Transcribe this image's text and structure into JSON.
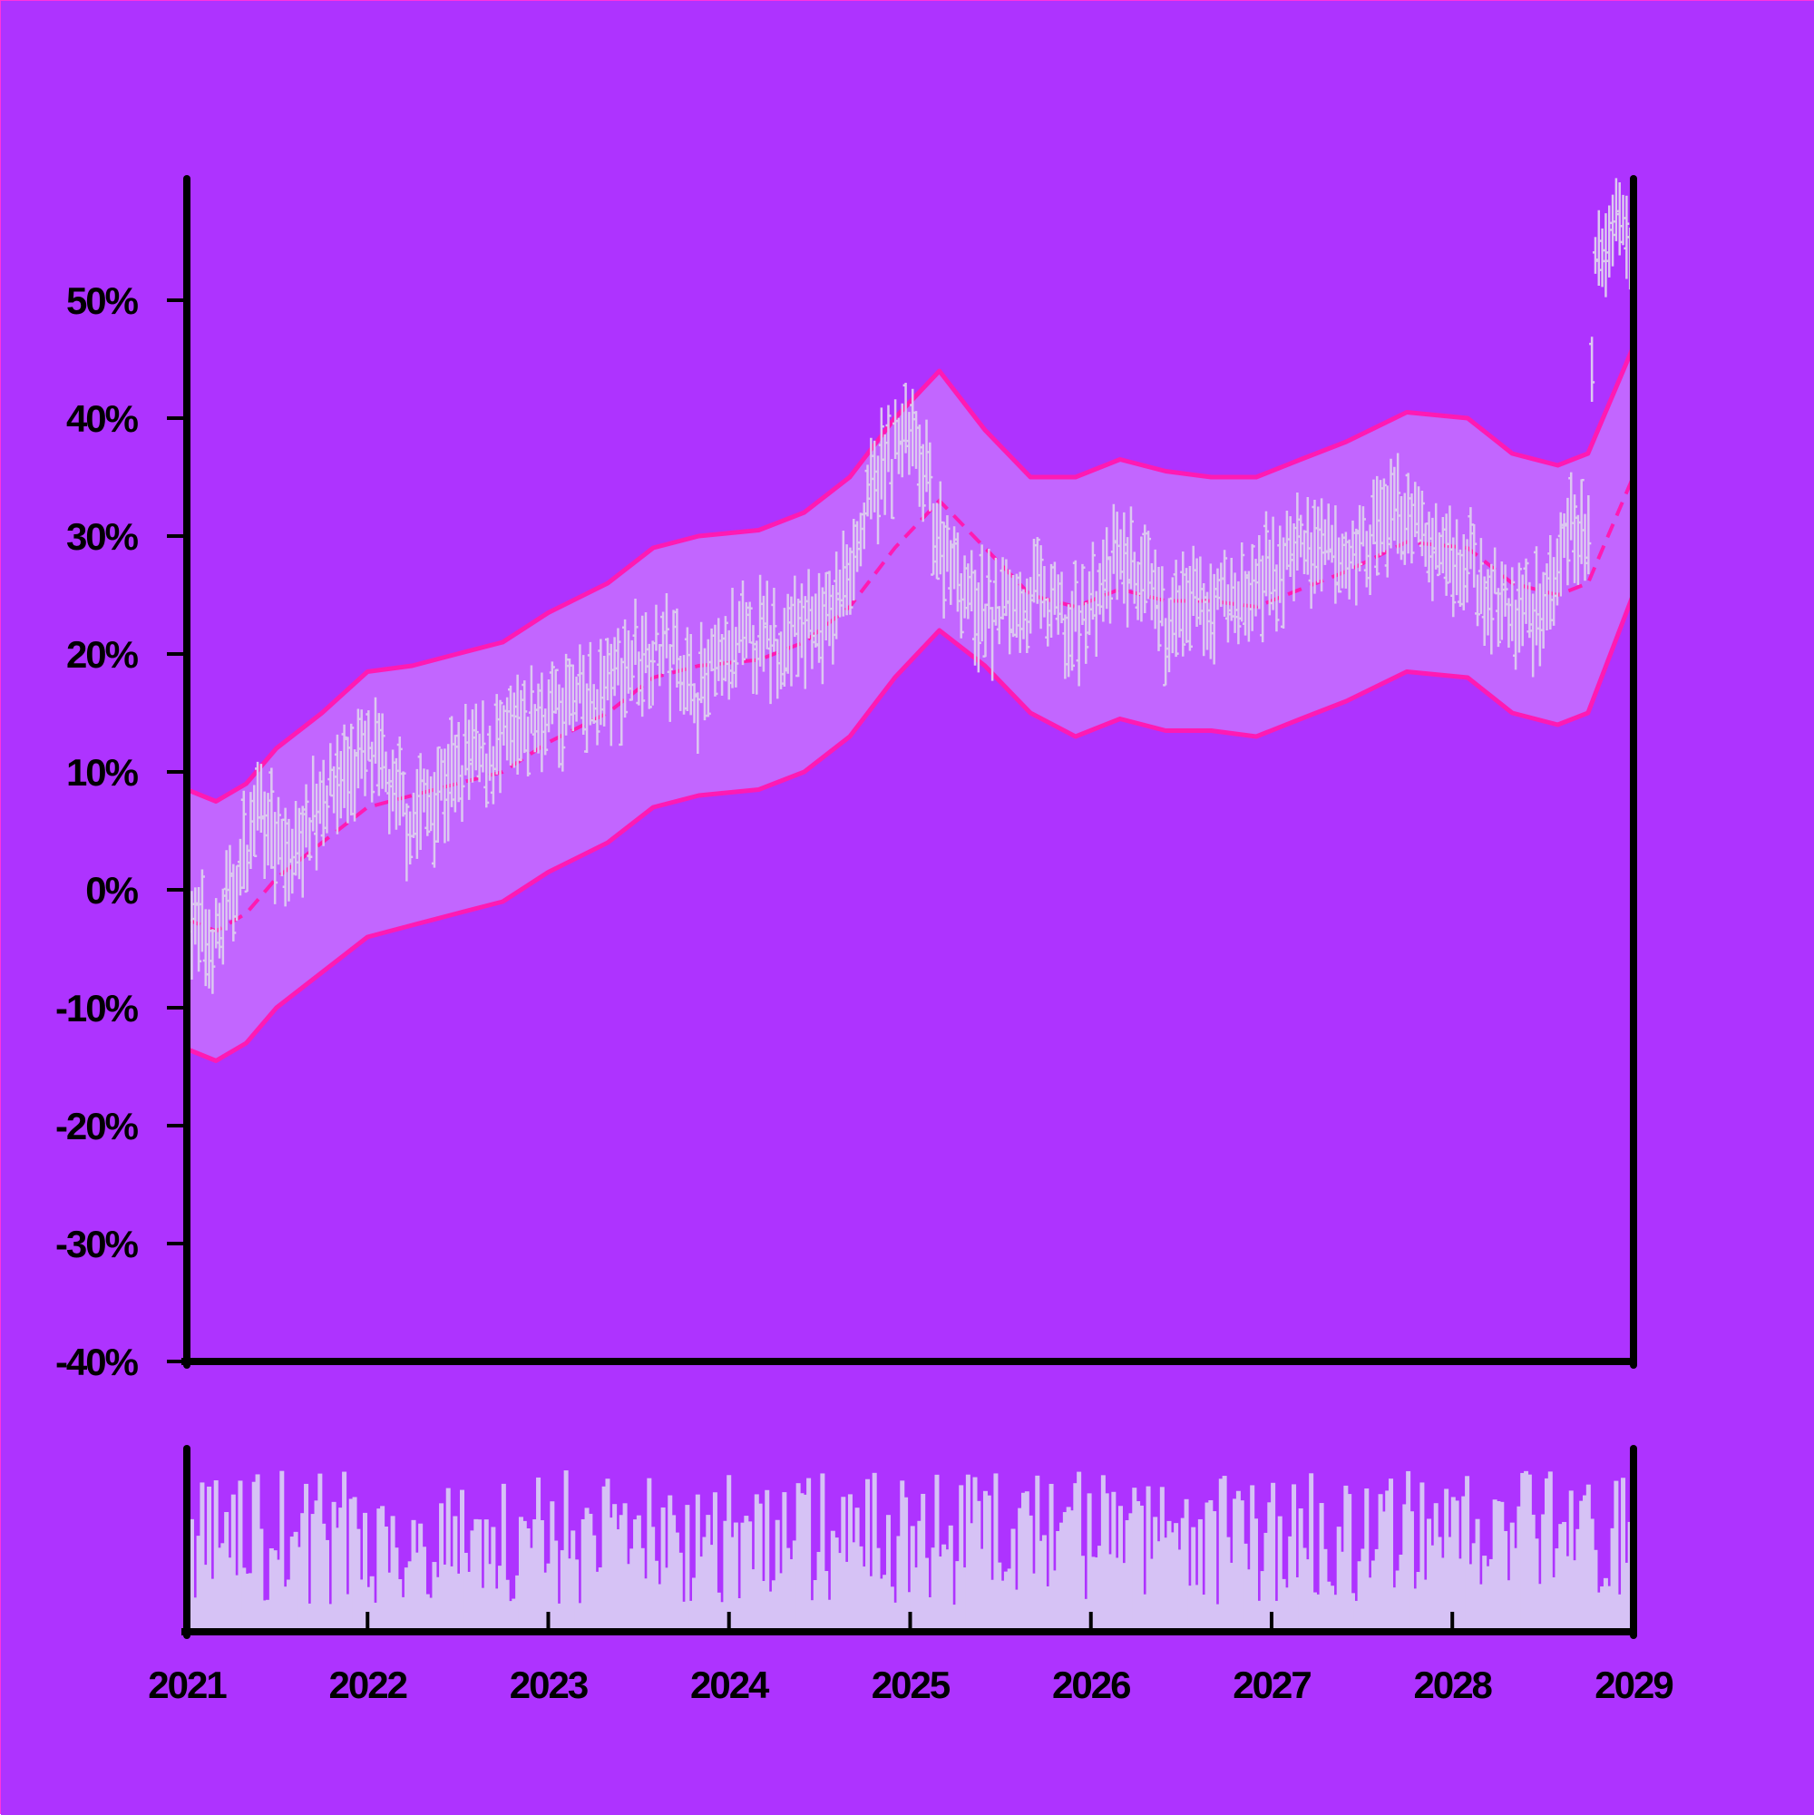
{
  "colors": {
    "background": "#ae33ff",
    "band_fill": "#c266ff",
    "band_line": "#ff1ab3",
    "bar": "#dcc8f0",
    "volume": "#d6c2f5",
    "axis": "#000000"
  },
  "chart_data": {
    "type": "bar",
    "subtype": "ohlc-with-bollinger-bands-and-volume",
    "title": "",
    "xlabel": "",
    "ylabel": "",
    "x_range": [
      "2021-01-01",
      "2029-01-01"
    ],
    "ylim": [
      -40,
      60
    ],
    "y_ticks": [
      -40,
      -30,
      -20,
      -10,
      0,
      10,
      20,
      30,
      40,
      50
    ],
    "y_tick_labels": [
      "-40%",
      "-30%",
      "-20%",
      "-10%",
      "0%",
      "10%",
      "20%",
      "30%",
      "40%",
      "50%"
    ],
    "x_ticks": [
      "2021-01-01",
      "2022-01-01",
      "2023-01-01",
      "2024-01-01",
      "2025-01-01",
      "2026-01-01",
      "2027-01-01",
      "2028-01-01",
      "2029-01-01"
    ],
    "x_tick_labels": [
      "2021",
      "2022",
      "2023",
      "2024",
      "2025",
      "2026",
      "2027",
      "2028",
      "2029"
    ],
    "grid": false,
    "legend": "none",
    "price_keypoints": [
      {
        "t": "2021-01-01",
        "v": -3
      },
      {
        "t": "2021-03-01",
        "v": -4
      },
      {
        "t": "2021-06-01",
        "v": 7
      },
      {
        "t": "2021-07-15",
        "v": 2
      },
      {
        "t": "2021-10-01",
        "v": 8
      },
      {
        "t": "2022-01-01",
        "v": 12
      },
      {
        "t": "2022-04-01",
        "v": 6
      },
      {
        "t": "2022-07-01",
        "v": 10
      },
      {
        "t": "2022-10-01",
        "v": 12
      },
      {
        "t": "2023-01-01",
        "v": 15
      },
      {
        "t": "2023-04-01",
        "v": 16
      },
      {
        "t": "2023-08-01",
        "v": 21
      },
      {
        "t": "2023-11-01",
        "v": 17
      },
      {
        "t": "2024-02-01",
        "v": 21
      },
      {
        "t": "2024-05-01",
        "v": 21
      },
      {
        "t": "2024-08-01",
        "v": 24
      },
      {
        "t": "2024-11-01",
        "v": 35
      },
      {
        "t": "2025-01-01",
        "v": 39
      },
      {
        "t": "2025-03-01",
        "v": 30
      },
      {
        "t": "2025-06-01",
        "v": 23
      },
      {
        "t": "2025-09-01",
        "v": 25
      },
      {
        "t": "2025-12-01",
        "v": 22
      },
      {
        "t": "2026-03-01",
        "v": 28
      },
      {
        "t": "2026-06-01",
        "v": 23
      },
      {
        "t": "2026-09-01",
        "v": 24
      },
      {
        "t": "2026-12-01",
        "v": 25
      },
      {
        "t": "2027-03-01",
        "v": 29
      },
      {
        "t": "2027-06-01",
        "v": 28
      },
      {
        "t": "2027-09-01",
        "v": 32
      },
      {
        "t": "2027-11-01",
        "v": 30
      },
      {
        "t": "2028-02-01",
        "v": 28
      },
      {
        "t": "2028-05-01",
        "v": 23
      },
      {
        "t": "2028-07-15",
        "v": 25
      },
      {
        "t": "2028-09-01",
        "v": 30
      },
      {
        "t": "2028-10-01",
        "v": 30
      },
      {
        "t": "2028-10-15",
        "v": 52
      },
      {
        "t": "2028-12-01",
        "v": 58
      },
      {
        "t": "2028-12-31",
        "v": 52
      }
    ],
    "middle_band": [
      {
        "t": "2021-01-01",
        "v": -2.5
      },
      {
        "t": "2021-03-01",
        "v": -3.5
      },
      {
        "t": "2021-05-01",
        "v": -2
      },
      {
        "t": "2021-07-01",
        "v": 1
      },
      {
        "t": "2021-10-01",
        "v": 4
      },
      {
        "t": "2022-01-01",
        "v": 7
      },
      {
        "t": "2022-04-01",
        "v": 8
      },
      {
        "t": "2022-07-01",
        "v": 9
      },
      {
        "t": "2022-10-01",
        "v": 10
      },
      {
        "t": "2023-01-01",
        "v": 12.5
      },
      {
        "t": "2023-05-01",
        "v": 15
      },
      {
        "t": "2023-08-01",
        "v": 18
      },
      {
        "t": "2023-11-01",
        "v": 19
      },
      {
        "t": "2024-03-01",
        "v": 19.5
      },
      {
        "t": "2024-06-01",
        "v": 21
      },
      {
        "t": "2024-09-01",
        "v": 24
      },
      {
        "t": "2024-12-01",
        "v": 29
      },
      {
        "t": "2025-03-01",
        "v": 33
      },
      {
        "t": "2025-06-01",
        "v": 29
      },
      {
        "t": "2025-09-01",
        "v": 25
      },
      {
        "t": "2025-12-01",
        "v": 24
      },
      {
        "t": "2026-03-01",
        "v": 25.5
      },
      {
        "t": "2026-06-01",
        "v": 24.5
      },
      {
        "t": "2026-09-01",
        "v": 24.5
      },
      {
        "t": "2026-12-01",
        "v": 24
      },
      {
        "t": "2027-03-01",
        "v": 25.5
      },
      {
        "t": "2027-06-01",
        "v": 27
      },
      {
        "t": "2027-10-01",
        "v": 29.5
      },
      {
        "t": "2028-02-01",
        "v": 29
      },
      {
        "t": "2028-05-01",
        "v": 26
      },
      {
        "t": "2028-08-01",
        "v": 25
      },
      {
        "t": "2028-10-01",
        "v": 26
      },
      {
        "t": "2028-12-31",
        "v": 35
      }
    ],
    "upper_band": [
      {
        "t": "2021-01-01",
        "v": 8.5
      },
      {
        "t": "2021-03-01",
        "v": 7.5
      },
      {
        "t": "2021-05-01",
        "v": 9
      },
      {
        "t": "2021-07-01",
        "v": 12
      },
      {
        "t": "2021-10-01",
        "v": 15
      },
      {
        "t": "2022-01-01",
        "v": 18.5
      },
      {
        "t": "2022-04-01",
        "v": 19
      },
      {
        "t": "2022-07-01",
        "v": 20
      },
      {
        "t": "2022-10-01",
        "v": 21
      },
      {
        "t": "2023-01-01",
        "v": 23.5
      },
      {
        "t": "2023-05-01",
        "v": 26
      },
      {
        "t": "2023-08-01",
        "v": 29
      },
      {
        "t": "2023-11-01",
        "v": 30
      },
      {
        "t": "2024-03-01",
        "v": 30.5
      },
      {
        "t": "2024-06-01",
        "v": 32
      },
      {
        "t": "2024-09-01",
        "v": 35
      },
      {
        "t": "2024-12-01",
        "v": 40
      },
      {
        "t": "2025-03-01",
        "v": 44
      },
      {
        "t": "2025-06-01",
        "v": 39
      },
      {
        "t": "2025-09-01",
        "v": 35
      },
      {
        "t": "2025-12-01",
        "v": 35
      },
      {
        "t": "2026-03-01",
        "v": 36.5
      },
      {
        "t": "2026-06-01",
        "v": 35.5
      },
      {
        "t": "2026-09-01",
        "v": 35
      },
      {
        "t": "2026-12-01",
        "v": 35
      },
      {
        "t": "2027-03-01",
        "v": 36.5
      },
      {
        "t": "2027-06-01",
        "v": 38
      },
      {
        "t": "2027-10-01",
        "v": 40.5
      },
      {
        "t": "2028-02-01",
        "v": 40
      },
      {
        "t": "2028-05-01",
        "v": 37
      },
      {
        "t": "2028-08-01",
        "v": 36
      },
      {
        "t": "2028-10-01",
        "v": 37
      },
      {
        "t": "2028-12-31",
        "v": 46
      }
    ],
    "lower_band": [
      {
        "t": "2021-01-01",
        "v": -13.5
      },
      {
        "t": "2021-03-01",
        "v": -14.5
      },
      {
        "t": "2021-05-01",
        "v": -13
      },
      {
        "t": "2021-07-01",
        "v": -10
      },
      {
        "t": "2021-10-01",
        "v": -7
      },
      {
        "t": "2022-01-01",
        "v": -4
      },
      {
        "t": "2022-04-01",
        "v": -3
      },
      {
        "t": "2022-07-01",
        "v": -2
      },
      {
        "t": "2022-10-01",
        "v": -1
      },
      {
        "t": "2023-01-01",
        "v": 1.5
      },
      {
        "t": "2023-05-01",
        "v": 4
      },
      {
        "t": "2023-08-01",
        "v": 7
      },
      {
        "t": "2023-11-01",
        "v": 8
      },
      {
        "t": "2024-03-01",
        "v": 8.5
      },
      {
        "t": "2024-06-01",
        "v": 10
      },
      {
        "t": "2024-09-01",
        "v": 13
      },
      {
        "t": "2024-12-01",
        "v": 18
      },
      {
        "t": "2025-03-01",
        "v": 22
      },
      {
        "t": "2025-06-01",
        "v": 19
      },
      {
        "t": "2025-09-01",
        "v": 15
      },
      {
        "t": "2025-12-01",
        "v": 13
      },
      {
        "t": "2026-03-01",
        "v": 14.5
      },
      {
        "t": "2026-06-01",
        "v": 13.5
      },
      {
        "t": "2026-09-01",
        "v": 13.5
      },
      {
        "t": "2026-12-01",
        "v": 13
      },
      {
        "t": "2027-03-01",
        "v": 14.5
      },
      {
        "t": "2027-06-01",
        "v": 16
      },
      {
        "t": "2027-10-01",
        "v": 18.5
      },
      {
        "t": "2028-02-01",
        "v": 18
      },
      {
        "t": "2028-05-01",
        "v": 15
      },
      {
        "t": "2028-08-01",
        "v": 14
      },
      {
        "t": "2028-10-01",
        "v": 15
      },
      {
        "t": "2028-12-31",
        "v": 25
      }
    ],
    "volume_range": [
      0,
      100
    ]
  }
}
